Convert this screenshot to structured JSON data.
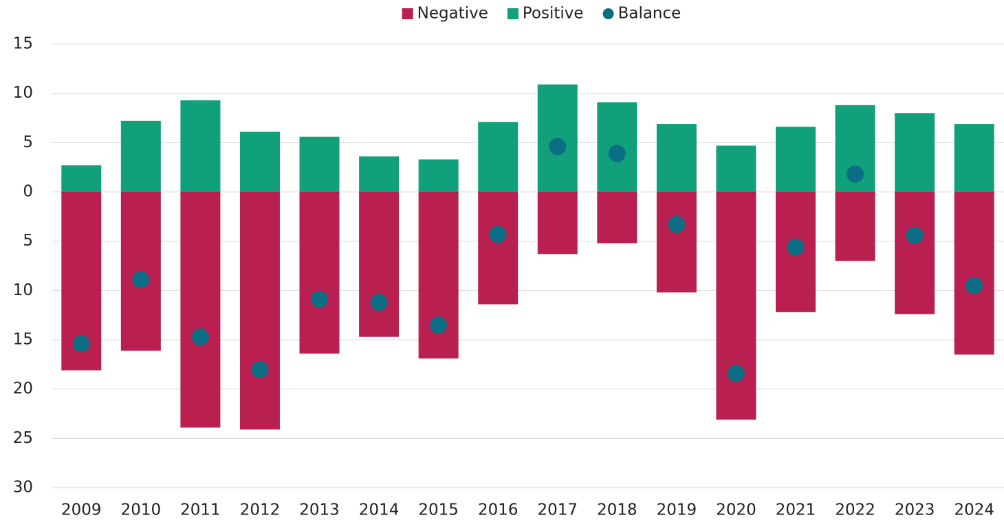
{
  "chart_data": {
    "type": "bar",
    "categories": [
      "2009",
      "2010",
      "2011",
      "2012",
      "2013",
      "2014",
      "2015",
      "2016",
      "2017",
      "2018",
      "2019",
      "2020",
      "2021",
      "2022",
      "2023",
      "2024"
    ],
    "series": [
      {
        "name": "Negative",
        "color": "#b91f4f",
        "values": [
          -18.1,
          -16.1,
          -23.9,
          -24.1,
          -16.4,
          -14.7,
          -16.9,
          -11.4,
          -6.3,
          -5.2,
          -10.2,
          -23.1,
          -12.2,
          -7.0,
          -12.4,
          -16.5
        ]
      },
      {
        "name": "Positive",
        "color": "#10a07a",
        "values": [
          2.7,
          7.2,
          9.3,
          6.1,
          5.6,
          3.6,
          3.3,
          7.1,
          10.9,
          9.1,
          6.9,
          4.7,
          6.6,
          8.8,
          8.0,
          6.9
        ]
      },
      {
        "name": "Balance",
        "color": "#0b6e85",
        "type": "scatter",
        "values": [
          -15.4,
          -8.9,
          -14.7,
          -18.0,
          -10.9,
          -11.2,
          -13.5,
          -4.3,
          4.6,
          3.9,
          -3.3,
          -18.4,
          -5.6,
          1.8,
          -4.4,
          -9.5
        ]
      }
    ],
    "ylim": [
      -30,
      15
    ],
    "yticks": [
      15,
      10,
      5,
      0,
      {
        "value": -5,
        "label": "5"
      },
      {
        "value": -10,
        "label": "10"
      },
      {
        "value": -15,
        "label": "15"
      },
      {
        "value": -20,
        "label": "20"
      },
      {
        "value": -25,
        "label": "25"
      },
      {
        "value": -30,
        "label": "30"
      }
    ],
    "grid": true,
    "legend": "top"
  }
}
